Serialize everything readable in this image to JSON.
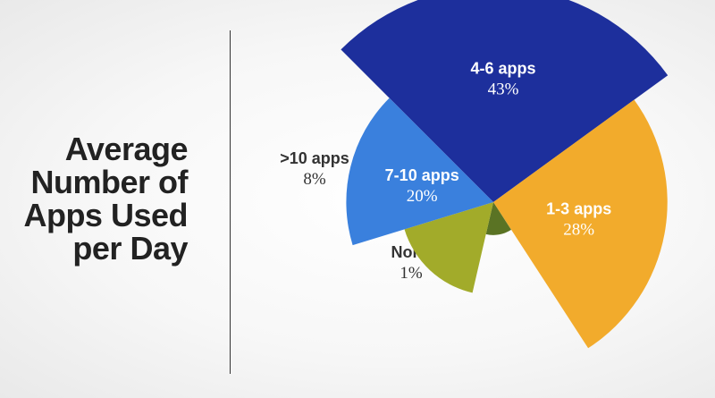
{
  "title_lines": [
    "Average",
    "Number of",
    "Apps Used",
    "per Day"
  ],
  "chart_data": {
    "type": "pie",
    "variant": "polar area (radius varies by share)",
    "title": "Average Number of Apps Used per Day",
    "categories": [
      "4-6 apps",
      "1-3 apps",
      "None",
      ">10 apps",
      "7-10 apps"
    ],
    "values": [
      43,
      28,
      1,
      8,
      20
    ],
    "value_labels": [
      "43%",
      "28%",
      "1%",
      "8%",
      "20%"
    ],
    "colors": [
      "#1d2f9c",
      "#f2ab2c",
      "#5a7324",
      "#a2ab2a",
      "#3a80dd"
    ],
    "label_colors": [
      "#ffffff",
      "#ffffff",
      "#333333",
      "#333333",
      "#ffffff"
    ],
    "label_placement": [
      "inside",
      "inside",
      "outside",
      "outside",
      "inside"
    ],
    "legend": "none (labels on slices)"
  }
}
